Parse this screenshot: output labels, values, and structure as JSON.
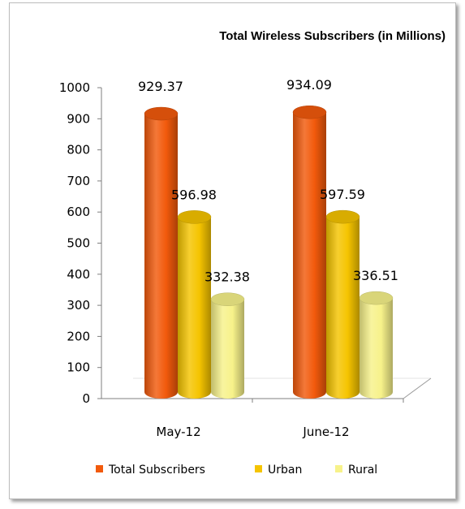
{
  "chart_data": {
    "type": "bar",
    "title": "Total Wireless Subscribers (in Millions)",
    "categories": [
      "May-12",
      "June-12"
    ],
    "series": [
      {
        "name": "Total Subscribers",
        "values": [
          929.37,
          934.09
        ],
        "labels": [
          "929.37",
          "934.09"
        ],
        "color": "#f25a0c"
      },
      {
        "name": "Urban",
        "values": [
          596.98,
          597.59
        ],
        "labels": [
          "596.98",
          "597.59"
        ],
        "color": "#f5c400"
      },
      {
        "name": "Rural",
        "values": [
          332.38,
          336.51
        ],
        "labels": [
          "332.38",
          "336.51"
        ],
        "color": "#f7f28a"
      }
    ],
    "ylim": [
      0,
      1000
    ],
    "yticks": [
      "0",
      "100",
      "200",
      "300",
      "400",
      "500",
      "600",
      "700",
      "800",
      "900",
      "1000"
    ],
    "grid": false,
    "legend": "bottom",
    "style": "3d-cylinder"
  }
}
